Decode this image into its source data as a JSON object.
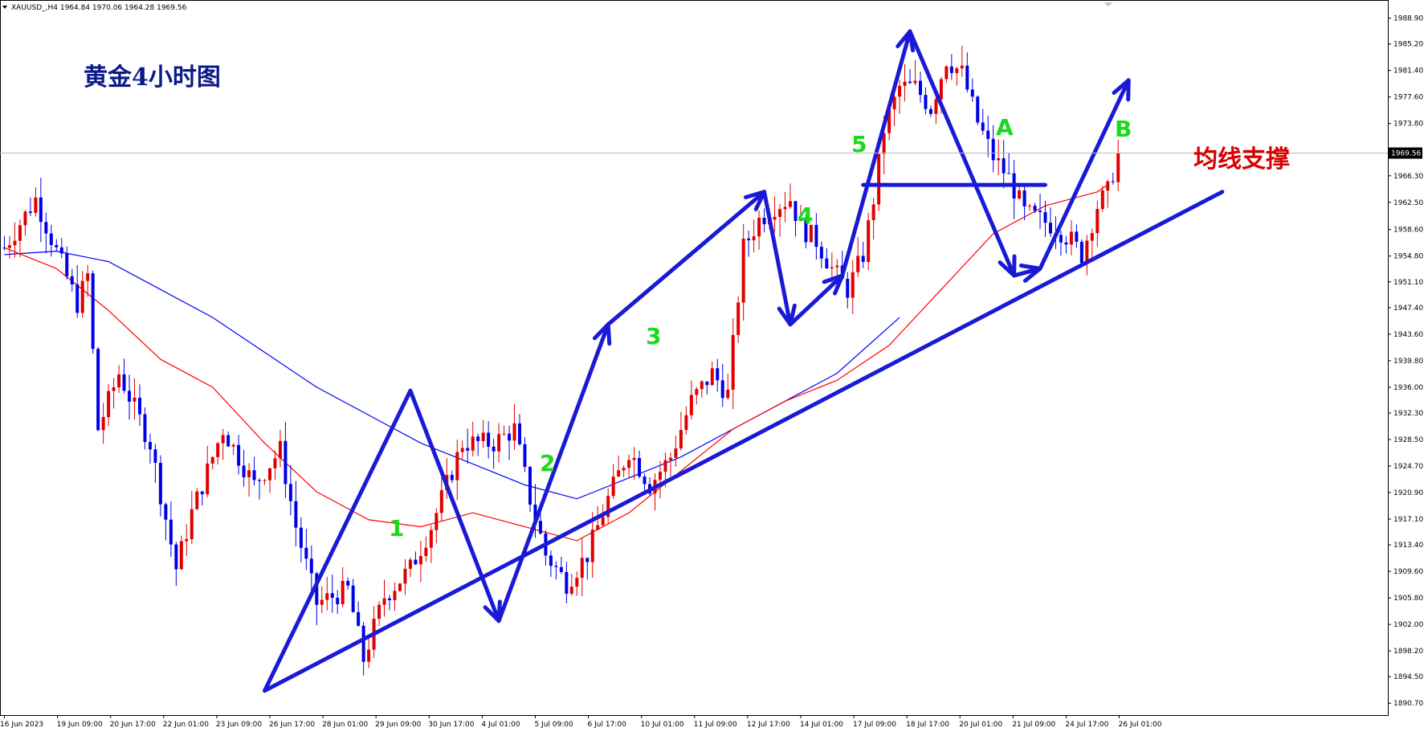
{
  "header": {
    "symbol_info": "XAUUSD_,H4  1964.84 1970.06 1964.28 1969.56"
  },
  "title": "黄金4小时图",
  "support_label": "均线支撑",
  "colors": {
    "bull": "#e00000",
    "bear": "#0000e6",
    "ma_fast": "#ff0000",
    "ma_slow": "#0000ff",
    "annotation": "#1a1ad6",
    "wave_label": "#1bd91b",
    "price_tag": "#000000"
  },
  "chart_data": {
    "type": "candlestick",
    "symbol": "XAUUSD_",
    "timeframe": "H4",
    "current_price": 1969.56,
    "price_tag": "1969.56",
    "ylim": [
      1889.0,
      1991.5
    ],
    "y_ticks": [
      "1988.90",
      "1985.20",
      "1981.40",
      "1977.60",
      "1973.80",
      "1966.30",
      "1962.50",
      "1958.60",
      "1954.80",
      "1951.10",
      "1947.40",
      "1943.60",
      "1939.80",
      "1936.00",
      "1932.30",
      "1928.50",
      "1924.70",
      "1920.90",
      "1917.10",
      "1913.40",
      "1909.60",
      "1905.80",
      "1902.00",
      "1898.20",
      "1894.50",
      "1890.70"
    ],
    "x_ticks": [
      "16 Jun 2023",
      "19 Jun 09:00",
      "20 Jun 17:00",
      "22 Jun 01:00",
      "23 Jun 09:00",
      "26 Jun 17:00",
      "28 Jun 01:00",
      "29 Jun 09:00",
      "30 Jun 17:00",
      "4 Jul 01:00",
      "5 Jul 09:00",
      "6 Jul 17:00",
      "10 Jul 01:00",
      "11 Jul 09:00",
      "12 Jul 17:00",
      "14 Jul 01:00",
      "17 Jul 09:00",
      "18 Jul 17:00",
      "20 Jul 01:00",
      "21 Jul 09:00",
      "24 Jul 17:00",
      "26 Jul 01:00"
    ],
    "anchors": [
      [
        0,
        1956
      ],
      [
        6,
        1963
      ],
      [
        14,
        1948
      ],
      [
        16,
        1952
      ],
      [
        18,
        1930
      ],
      [
        22,
        1938
      ],
      [
        28,
        1928
      ],
      [
        33,
        1910
      ],
      [
        36,
        1918
      ],
      [
        42,
        1930
      ],
      [
        48,
        1922
      ],
      [
        53,
        1927
      ],
      [
        56,
        1916
      ],
      [
        60,
        1905
      ],
      [
        66,
        1907
      ],
      [
        69,
        1897
      ],
      [
        73,
        1906
      ],
      [
        78,
        1910
      ],
      [
        82,
        1916
      ],
      [
        85,
        1922
      ],
      [
        88,
        1928
      ],
      [
        94,
        1928
      ],
      [
        98,
        1930
      ],
      [
        101,
        1920
      ],
      [
        104,
        1912
      ],
      [
        108,
        1908
      ],
      [
        112,
        1912
      ],
      [
        116,
        1920
      ],
      [
        120,
        1927
      ],
      [
        124,
        1922
      ],
      [
        128,
        1926
      ],
      [
        132,
        1934
      ],
      [
        136,
        1938
      ],
      [
        139,
        1935
      ],
      [
        142,
        1956
      ],
      [
        145,
        1960
      ],
      [
        148,
        1962
      ],
      [
        151,
        1963
      ],
      [
        153,
        1959
      ],
      [
        156,
        1957
      ],
      [
        159,
        1953
      ],
      [
        162,
        1950
      ],
      [
        165,
        1955
      ],
      [
        167,
        1963
      ],
      [
        169,
        1973
      ],
      [
        172,
        1979
      ],
      [
        175,
        1979
      ],
      [
        178,
        1976
      ],
      [
        181,
        1983
      ],
      [
        184,
        1981
      ],
      [
        187,
        1974
      ],
      [
        190,
        1969
      ],
      [
        193,
        1966
      ],
      [
        196,
        1961
      ],
      [
        199,
        1960
      ],
      [
        202,
        1959
      ],
      [
        205,
        1957
      ],
      [
        207,
        1955
      ],
      [
        210,
        1962
      ],
      [
        212,
        1964
      ],
      [
        214,
        1969.56
      ]
    ],
    "ma_fast": [
      [
        0,
        1956
      ],
      [
        10,
        1953
      ],
      [
        20,
        1947
      ],
      [
        30,
        1940
      ],
      [
        40,
        1936
      ],
      [
        50,
        1928
      ],
      [
        60,
        1921
      ],
      [
        70,
        1917
      ],
      [
        80,
        1916
      ],
      [
        90,
        1918
      ],
      [
        100,
        1916
      ],
      [
        110,
        1914
      ],
      [
        120,
        1918
      ],
      [
        130,
        1924
      ],
      [
        140,
        1930
      ],
      [
        150,
        1934
      ],
      [
        160,
        1937
      ],
      [
        170,
        1942
      ],
      [
        180,
        1950
      ],
      [
        190,
        1958
      ],
      [
        200,
        1962
      ],
      [
        210,
        1964
      ],
      [
        212,
        1965
      ]
    ],
    "ma_slow": [
      [
        0,
        1955
      ],
      [
        10,
        1955.5
      ],
      [
        20,
        1954
      ],
      [
        30,
        1950
      ],
      [
        40,
        1946
      ],
      [
        50,
        1941
      ],
      [
        60,
        1936
      ],
      [
        70,
        1932
      ],
      [
        80,
        1928
      ],
      [
        90,
        1925
      ],
      [
        100,
        1922
      ],
      [
        110,
        1920
      ],
      [
        120,
        1923
      ],
      [
        130,
        1926
      ],
      [
        140,
        1930
      ],
      [
        150,
        1934
      ],
      [
        160,
        1938
      ],
      [
        172,
        1946
      ]
    ],
    "wave_labels": [
      "1",
      "2",
      "3",
      "4",
      "5",
      "A",
      "B"
    ],
    "overlays": {
      "trendline": [
        [
          50,
          1892.5
        ],
        [
          234,
          1964
        ]
      ],
      "support_line": [
        [
          165,
          1965
        ],
        [
          200,
          1965
        ]
      ],
      "waves": [
        [
          [
            50,
            1892.5
          ],
          [
            78,
            1935.5
          ],
          [
            95,
            1902.5
          ],
          [
            116,
            1945
          ],
          [
            146,
            1964
          ],
          [
            151,
            1945
          ],
          [
            161,
            1952
          ],
          [
            174,
            1987
          ],
          [
            194,
            1952
          ],
          [
            199,
            1953
          ],
          [
            216,
            1980
          ]
        ]
      ]
    }
  }
}
